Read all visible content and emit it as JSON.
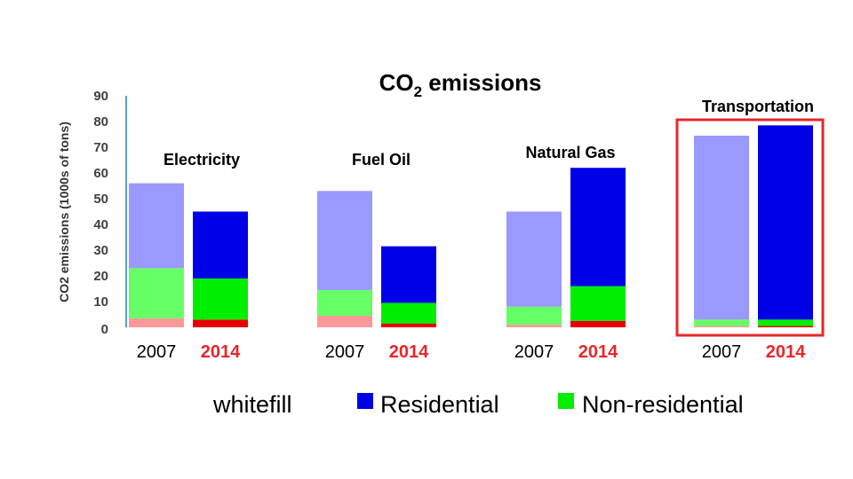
{
  "chart_data": {
    "type": "bar",
    "title": "CO",
    "title_subscript": "2",
    "title_suffix": " emissions",
    "ylabel": "CO2 emissions (1000s of tons)",
    "ylim": [
      0,
      90
    ],
    "yticks": [
      0,
      10,
      20,
      30,
      40,
      50,
      60,
      70,
      80,
      90
    ],
    "stacked": true,
    "grid": false,
    "legend_position": "bottom",
    "groups": [
      {
        "name": "Electricity",
        "bars": [
          {
            "year": "2007",
            "values": {
              "whitefill": 3.5,
              "Non-residential": 19.5,
              "Residential": 33
            }
          },
          {
            "year": "2014",
            "values": {
              "whitefill": 3,
              "Non-residential": 16,
              "Residential": 26
            }
          }
        ]
      },
      {
        "name": "Fuel Oil",
        "bars": [
          {
            "year": "2007",
            "values": {
              "whitefill": 4.5,
              "Non-residential": 10,
              "Residential": 38.5
            }
          },
          {
            "year": "2014",
            "values": {
              "whitefill": 1.5,
              "Non-residential": 8,
              "Residential": 22
            }
          }
        ]
      },
      {
        "name": "Natural Gas",
        "bars": [
          {
            "year": "2007",
            "values": {
              "whitefill": 1,
              "Non-residential": 7,
              "Residential": 37
            }
          },
          {
            "year": "2014",
            "values": {
              "whitefill": 2.5,
              "Non-residential": 13.5,
              "Residential": 46
            }
          }
        ]
      },
      {
        "name": "Transportation",
        "highlighted": true,
        "bars": [
          {
            "year": "2007",
            "values": {
              "whitefill": 0.5,
              "Non-residential": 2.5,
              "Residential": 71.5
            }
          },
          {
            "year": "2014",
            "values": {
              "whitefill": 0.5,
              "Non-residential": 2.5,
              "Residential": 75.5
            }
          }
        ]
      }
    ],
    "series": [
      {
        "name": "whitefill",
        "color_2007": "#ff9999",
        "color_2014": "#e60000",
        "legend_swatch": "#ffffff"
      },
      {
        "name": "Residential",
        "color_2007": "#9999ff",
        "color_2014": "#0000e6",
        "legend_swatch": "#0000e6"
      },
      {
        "name": "Non-residential",
        "color_2007": "#66ff66",
        "color_2014": "#00ee00",
        "legend_swatch": "#00ee00"
      }
    ],
    "highlight_color": "#e8262a",
    "axis_color": "#5b9bd5",
    "year_colors": {
      "2007": "#000000",
      "2014": "#e8262a"
    }
  }
}
